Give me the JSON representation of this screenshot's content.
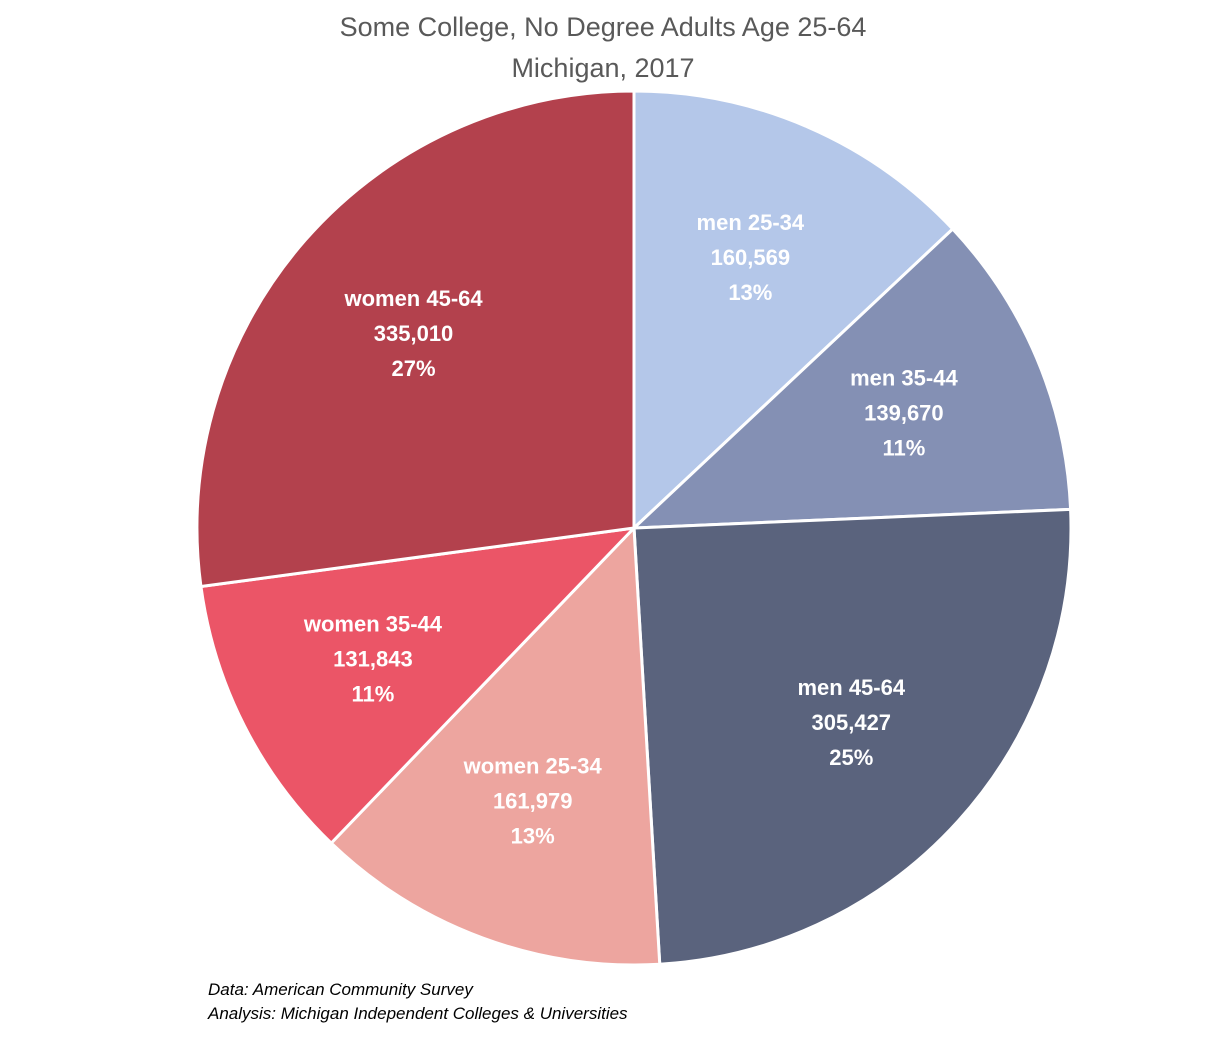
{
  "chart_data": {
    "type": "pie",
    "title": "Some College, No Degree Adults Age 25-64",
    "subtitle": "Michigan, 2017",
    "start_angle_deg": 0,
    "direction": "clockwise",
    "colors": {
      "men 25-34": "#b4c7e9",
      "men 35-44": "#8490b4",
      "men 45-64": "#5a637d",
      "women 25-34": "#eda59f",
      "women 35-44": "#eb5567",
      "women 45-64": "#b3414d",
      "separator": "#ffffff",
      "label_text": "#ffffff"
    },
    "slices": [
      {
        "label": "men 25-34",
        "value": 160569,
        "value_text": "160,569",
        "percent_text": "13%"
      },
      {
        "label": "men 35-44",
        "value": 139670,
        "value_text": "139,670",
        "percent_text": "11%"
      },
      {
        "label": "men 45-64",
        "value": 305427,
        "value_text": "305,427",
        "percent_text": "25%"
      },
      {
        "label": "women 25-34",
        "value": 161979,
        "value_text": "161,979",
        "percent_text": "13%"
      },
      {
        "label": "women 35-44",
        "value": 131843,
        "value_text": "131,843",
        "percent_text": "11%"
      },
      {
        "label": "women 45-64",
        "value": 335010,
        "value_text": "335,010",
        "percent_text": "27%"
      }
    ]
  },
  "notes": {
    "data_source": "Data: American Community Survey",
    "analysis": "Analysis: Michigan Independent Colleges & Universities"
  }
}
